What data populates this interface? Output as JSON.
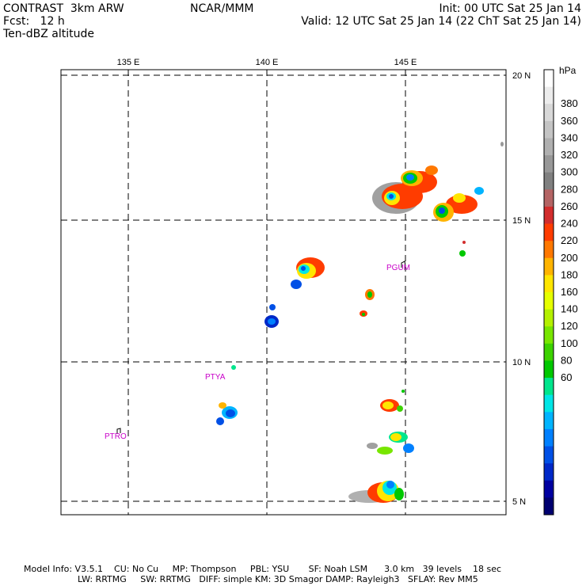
{
  "header": {
    "left_line1": "CONTRAST  3km ARW",
    "left_line2": "Fcst:   12 h",
    "left_line3": "Ten-dBZ altitude",
    "center": "NCAR/MMM",
    "right_line1": "Init: 00 UTC Sat 25 Jan 14",
    "right_line2": "Valid: 12 UTC Sat 25 Jan 14 (22 ChT Sat 25 Jan 14)"
  },
  "map": {
    "lon_labels": [
      "135 E",
      "140 E",
      "145 E"
    ],
    "lat_labels": [
      "20 N",
      "15 N",
      "10 N",
      "5 N"
    ],
    "stations": [
      {
        "id": "PGUM",
        "label": "PGUM"
      },
      {
        "id": "PTYA",
        "label": "PTYA"
      },
      {
        "id": "PTRO",
        "label": "PTRO"
      }
    ]
  },
  "colorbar": {
    "unit": "hPa",
    "labels": [
      "380",
      "360",
      "340",
      "320",
      "300",
      "280",
      "260",
      "240",
      "220",
      "200",
      "180",
      "160",
      "140",
      "120",
      "100",
      "80",
      "60"
    ],
    "colors": [
      "#ffffff",
      "#ececec",
      "#d8d8d8",
      "#c4c4c4",
      "#b0b0b0",
      "#989898",
      "#808080",
      "#b46464",
      "#d22d2d",
      "#ff3c00",
      "#ff7800",
      "#ffb400",
      "#ffe600",
      "#e6ff00",
      "#b4f000",
      "#78e600",
      "#3cd200",
      "#00c800",
      "#00e68c",
      "#00e6e6",
      "#00b4ff",
      "#0080ff",
      "#0050e6",
      "#0028c8",
      "#0000a0",
      "#000070"
    ]
  },
  "footer": {
    "line1": "Model Info: V3.5.1    CU: No Cu     MP: Thompson     PBL: YSU       SF: Noah LSM      3.0 km   39 levels    18 sec",
    "line2": "LW: RRTMG     SW: RRTMG   DIFF: simple KM: 3D Smagor DAMP: Rayleigh3   SFLAY: Rev MM5"
  }
}
